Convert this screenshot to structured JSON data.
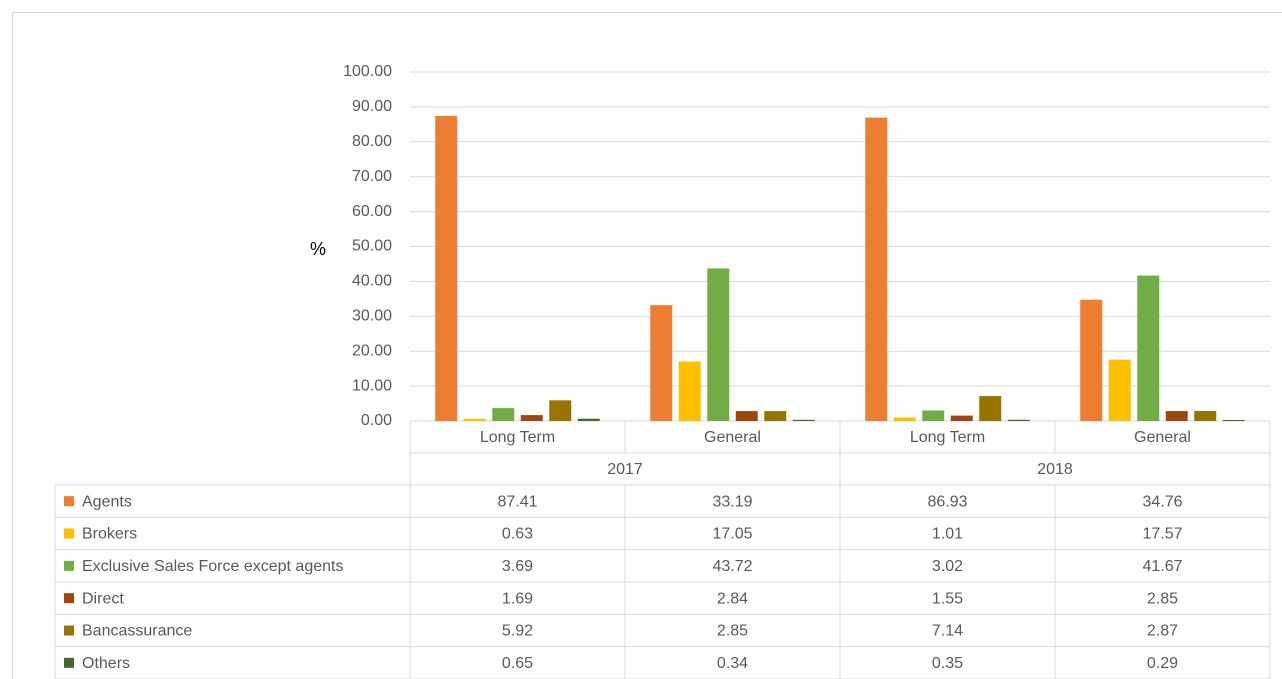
{
  "chart_data": {
    "type": "bar",
    "y_label": "%",
    "categories": [
      "Long Term",
      "General",
      "Long Term",
      "General"
    ],
    "category_groups": [
      "2017",
      "2018"
    ],
    "series": [
      {
        "name": "Agents",
        "color": "#ed7d31",
        "values": [
          87.41,
          33.19,
          86.93,
          34.76
        ]
      },
      {
        "name": "Brokers",
        "color": "#ffc000",
        "values": [
          0.63,
          17.05,
          1.01,
          17.57
        ]
      },
      {
        "name": "Exclusive Sales Force except agents",
        "color": "#70ad47",
        "values": [
          3.69,
          43.72,
          3.02,
          41.67
        ]
      },
      {
        "name": "Direct",
        "color": "#9e480e",
        "values": [
          1.69,
          2.84,
          1.55,
          2.85
        ]
      },
      {
        "name": "Bancassurance",
        "color": "#997300",
        "values": [
          5.92,
          2.85,
          7.14,
          2.87
        ]
      },
      {
        "name": "Others",
        "color": "#43682b",
        "values": [
          0.65,
          0.34,
          0.35,
          0.29
        ]
      }
    ],
    "ylim": [
      0,
      100
    ],
    "yticks": [
      {
        "value": 0,
        "label": "0.00"
      },
      {
        "value": 10,
        "label": "10.00"
      },
      {
        "value": 20,
        "label": "20.00"
      },
      {
        "value": 30,
        "label": "30.00"
      },
      {
        "value": 40,
        "label": "40.00"
      },
      {
        "value": 50,
        "label": "50.00"
      },
      {
        "value": 60,
        "label": "60.00"
      },
      {
        "value": 70,
        "label": "70.00"
      },
      {
        "value": 80,
        "label": "80.00"
      },
      {
        "value": 90,
        "label": "90.00"
      },
      {
        "value": 100,
        "label": "100.00"
      }
    ],
    "grid": true,
    "data_table": true
  }
}
